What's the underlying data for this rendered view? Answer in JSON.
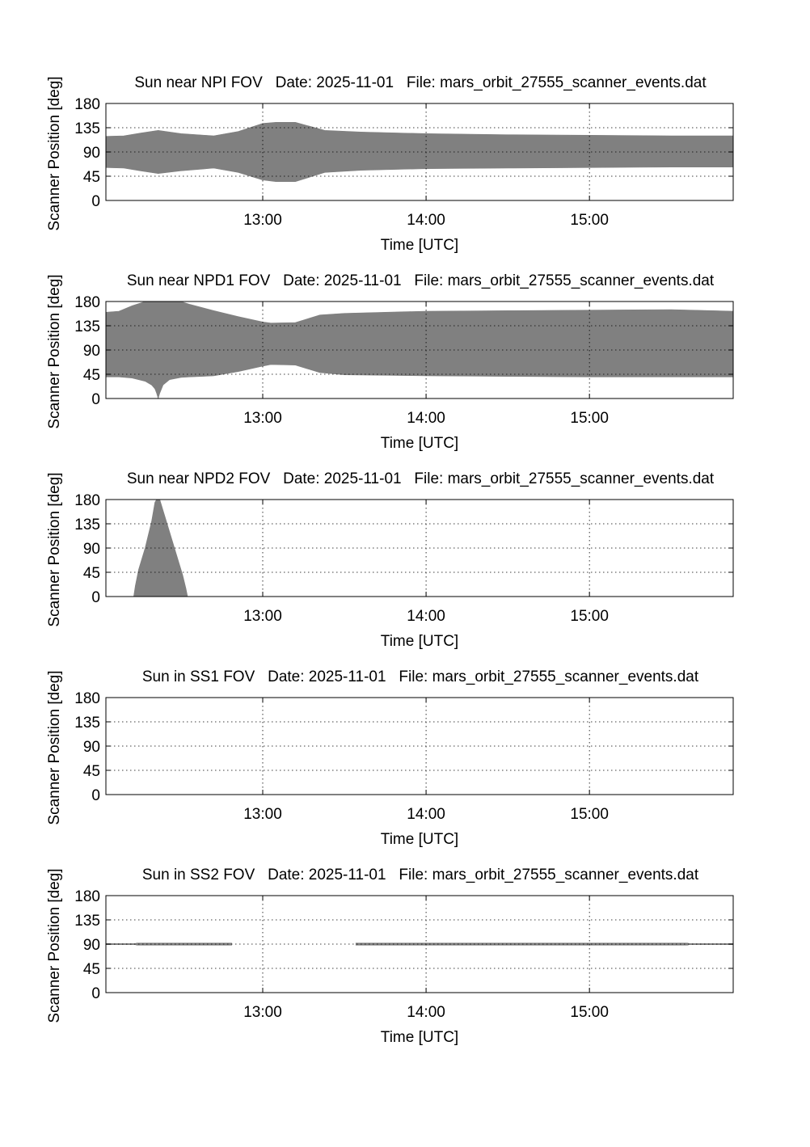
{
  "chart_data": [
    {
      "type": "area",
      "title": "Sun near NPI FOV   Date: 2025-11-01   File: mars_orbit_27555_scanner_events.dat",
      "xlabel": "Time [UTC]",
      "ylabel": "Scanner Position [deg]",
      "x_unit": "hours UTC",
      "xlim": [
        12.04,
        15.88
      ],
      "ylim": [
        0,
        180
      ],
      "yticks": [
        0,
        45,
        90,
        135,
        180
      ],
      "xticks": [
        13,
        14,
        15
      ],
      "xticklabels": [
        "13:00",
        "14:00",
        "15:00"
      ],
      "grid": true,
      "fill_color": "#808080",
      "band": {
        "x": [
          12.04,
          12.15,
          12.25,
          12.36,
          12.5,
          12.7,
          12.85,
          13.0,
          13.08,
          13.2,
          13.38,
          13.6,
          14.0,
          14.5,
          15.0,
          15.5,
          15.88
        ],
        "lower": [
          61,
          60,
          55,
          50,
          55,
          60,
          52,
          38,
          35,
          35,
          52,
          56,
          59,
          60,
          61,
          62,
          62
        ],
        "upper": [
          119,
          120,
          125,
          130,
          124,
          120,
          128,
          143,
          145,
          145,
          130,
          127,
          124,
          122,
          121,
          120,
          120
        ]
      }
    },
    {
      "type": "area",
      "title": "Sun near NPD1 FOV   Date: 2025-11-01   File: mars_orbit_27555_scanner_events.dat",
      "xlabel": "Time [UTC]",
      "ylabel": "Scanner Position [deg]",
      "x_unit": "hours UTC",
      "xlim": [
        12.04,
        15.88
      ],
      "ylim": [
        0,
        180
      ],
      "yticks": [
        0,
        45,
        90,
        135,
        180
      ],
      "xticks": [
        13,
        14,
        15
      ],
      "xticklabels": [
        "13:00",
        "14:00",
        "15:00"
      ],
      "grid": true,
      "fill_color": "#808080",
      "band": {
        "x": [
          12.04,
          12.12,
          12.2,
          12.28,
          12.32,
          12.34,
          12.35,
          12.36,
          12.37,
          12.39,
          12.43,
          12.5,
          12.55,
          12.7,
          12.85,
          13.0,
          13.05,
          13.2,
          13.35,
          13.5,
          14.0,
          14.5,
          15.0,
          15.5,
          15.88
        ],
        "lower": [
          40,
          40,
          38,
          32,
          25,
          18,
          10,
          0,
          10,
          25,
          35,
          39,
          40,
          42,
          50,
          60,
          63,
          62,
          48,
          44,
          42,
          41,
          40,
          40,
          40
        ],
        "upper": [
          160,
          162,
          172,
          180,
          180,
          180,
          180,
          180,
          180,
          180,
          180,
          180,
          175,
          163,
          152,
          142,
          140,
          141,
          155,
          158,
          162,
          163,
          164,
          165,
          162
        ]
      }
    },
    {
      "type": "area",
      "title": "Sun near NPD2 FOV   Date: 2025-11-01   File: mars_orbit_27555_scanner_events.dat",
      "xlabel": "Time [UTC]",
      "ylabel": "Scanner Position [deg]",
      "x_unit": "hours UTC",
      "xlim": [
        12.04,
        15.88
      ],
      "ylim": [
        0,
        180
      ],
      "yticks": [
        0,
        45,
        90,
        135,
        180
      ],
      "xticks": [
        13,
        14,
        15
      ],
      "xticklabels": [
        "13:00",
        "14:00",
        "15:00"
      ],
      "grid": true,
      "fill_color": "#808080",
      "band": {
        "x": [
          12.21,
          12.22,
          12.24,
          12.28,
          12.32,
          12.34,
          12.35,
          12.37,
          12.39,
          12.43,
          12.47,
          12.51,
          12.53,
          12.54
        ],
        "lower": [
          0,
          0,
          0,
          0,
          0,
          0,
          0,
          0,
          0,
          0,
          0,
          0,
          0,
          0
        ],
        "upper": [
          0,
          20,
          50,
          90,
          140,
          175,
          180,
          180,
          160,
          120,
          80,
          40,
          15,
          0
        ]
      }
    },
    {
      "type": "area",
      "title": "Sun in SS1 FOV   Date: 2025-11-01   File: mars_orbit_27555_scanner_events.dat",
      "xlabel": "Time [UTC]",
      "ylabel": "Scanner Position [deg]",
      "x_unit": "hours UTC",
      "xlim": [
        12.04,
        15.88
      ],
      "ylim": [
        0,
        180
      ],
      "yticks": [
        0,
        45,
        90,
        135,
        180
      ],
      "xticks": [
        13,
        14,
        15
      ],
      "xticklabels": [
        "13:00",
        "14:00",
        "15:00"
      ],
      "grid": true,
      "fill_color": "#808080",
      "band": null
    },
    {
      "type": "area",
      "title": "Sun in SS2 FOV   Date: 2025-11-01   File: mars_orbit_27555_scanner_events.dat",
      "xlabel": "Time [UTC]",
      "ylabel": "Scanner Position [deg]",
      "x_unit": "hours UTC",
      "xlim": [
        12.04,
        15.88
      ],
      "ylim": [
        0,
        180
      ],
      "yticks": [
        0,
        45,
        90,
        135,
        180
      ],
      "xticks": [
        13,
        14,
        15
      ],
      "xticklabels": [
        "13:00",
        "14:00",
        "15:00"
      ],
      "grid": true,
      "fill_color": "#808080",
      "segments": [
        {
          "x": [
            12.04,
            12.22,
            12.23,
            12.81
          ],
          "lower": [
            89,
            89,
            88,
            88
          ],
          "upper": [
            91,
            91,
            92,
            92
          ]
        },
        {
          "x": [
            13.57,
            15.6,
            15.61,
            15.88
          ],
          "lower": [
            88,
            88,
            89,
            89
          ],
          "upper": [
            92,
            92,
            91,
            91
          ]
        }
      ]
    }
  ]
}
